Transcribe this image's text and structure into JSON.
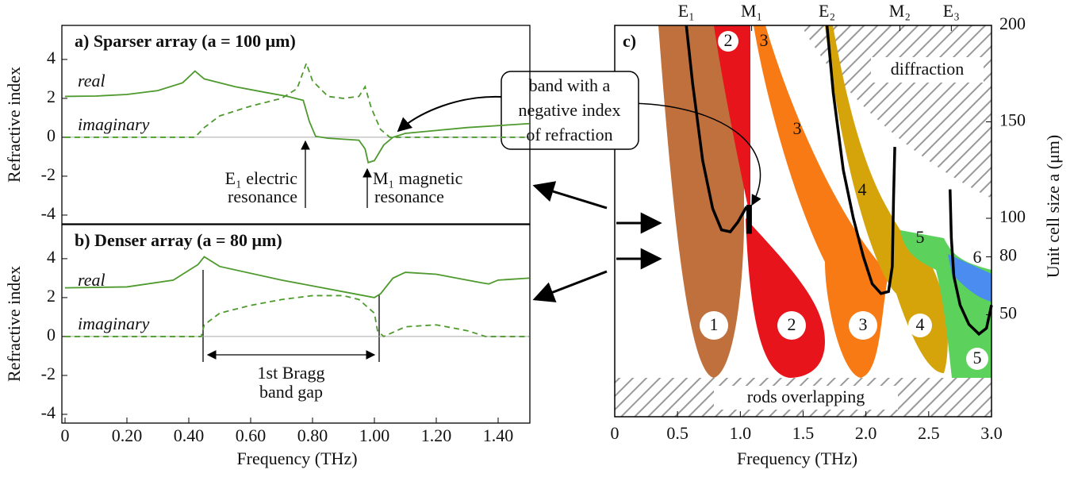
{
  "chart_data": [
    {
      "type": "line",
      "title": "a) Sparser array (a = 100 μm)",
      "ylabel": "Refractive index",
      "xlim": [
        0,
        1.5
      ],
      "ylim": [
        -4.45,
        5.75
      ],
      "yticks": [
        -4,
        -2,
        0,
        2,
        4
      ],
      "series": [
        {
          "name": "real",
          "color": "#4e9a2e",
          "line_style": "solid",
          "x": [
            0,
            0.1,
            0.2,
            0.3,
            0.38,
            0.42,
            0.45,
            0.55,
            0.65,
            0.72,
            0.77,
            0.79,
            0.81,
            0.85,
            0.9,
            0.95,
            0.97,
            0.98,
            1.0,
            1.03,
            1.06,
            1.1,
            1.2,
            1.3,
            1.4,
            1.5
          ],
          "values": [
            2.1,
            2.12,
            2.2,
            2.4,
            2.8,
            3.4,
            3.0,
            2.6,
            2.3,
            2.1,
            1.9,
            0.8,
            0.05,
            -0.05,
            -0.1,
            -0.15,
            -0.6,
            -1.3,
            -1.2,
            -0.4,
            0,
            0.2,
            0.35,
            0.5,
            0.6,
            0.7
          ]
        },
        {
          "name": "imaginary",
          "color": "#4e9a2e",
          "line_style": "dashed",
          "x": [
            0,
            0.42,
            0.45,
            0.5,
            0.6,
            0.7,
            0.75,
            0.78,
            0.8,
            0.85,
            0.9,
            0.95,
            0.97,
            0.99,
            1.02,
            1.05,
            1.5
          ],
          "values": [
            0,
            0,
            0.5,
            1.1,
            1.6,
            2.0,
            2.5,
            3.8,
            2.9,
            2.1,
            2.0,
            2.1,
            2.6,
            1.5,
            0.4,
            0,
            0
          ]
        }
      ],
      "annotations": [
        "E₁ electric",
        "resonance",
        "M₁ magnetic",
        "resonance"
      ]
    },
    {
      "type": "line",
      "title": "b) Denser array (a = 80 μm)",
      "ylabel": "Refractive index",
      "xlabel": "Frequency (THz)",
      "xlim": [
        0,
        1.5
      ],
      "ylim": [
        -4.45,
        5.75
      ],
      "yticks": [
        -4,
        -2,
        0,
        2,
        4
      ],
      "xticks": [
        0,
        {
          "value": 0.2,
          "label": "0.20"
        },
        {
          "value": 0.4,
          "label": "0.40"
        },
        {
          "value": 0.6,
          "label": "0.60"
        },
        {
          "value": 0.8,
          "label": "0.80"
        },
        {
          "value": 1,
          "label": "1.00"
        },
        {
          "value": 1.2,
          "label": "1.20"
        },
        {
          "value": 1.4,
          "label": "1.40"
        }
      ],
      "series": [
        {
          "name": "real",
          "color": "#4e9a2e",
          "line_style": "solid",
          "x": [
            0,
            0.2,
            0.35,
            0.43,
            0.45,
            0.5,
            0.7,
            0.9,
            1.0,
            1.02,
            1.06,
            1.1,
            1.2,
            1.3,
            1.35,
            1.37,
            1.4,
            1.5
          ],
          "values": [
            2.5,
            2.55,
            2.9,
            3.7,
            4.1,
            3.6,
            2.9,
            2.3,
            2.0,
            2.2,
            3.0,
            3.3,
            3.2,
            2.9,
            2.75,
            2.7,
            2.9,
            3.0
          ]
        },
        {
          "name": "imaginary",
          "color": "#4e9a2e",
          "line_style": "dashed",
          "x": [
            0,
            0.44,
            0.45,
            0.5,
            0.6,
            0.7,
            0.8,
            0.9,
            0.95,
            1.0,
            1.01,
            1.03,
            1.1,
            1.2,
            1.3,
            1.36,
            1.4,
            1.5
          ],
          "values": [
            0,
            0,
            0.6,
            1.2,
            1.6,
            1.9,
            2.1,
            2.1,
            1.9,
            1.2,
            0.3,
            0,
            0.5,
            0.6,
            0.3,
            0,
            0,
            0
          ]
        }
      ],
      "annotations": [
        "1st Bragg",
        "band gap"
      ]
    },
    {
      "type": "band_diagram",
      "title": "c)",
      "xlabel": "Frequency (THz)",
      "ylabel": "Unit cell size a  (μm)",
      "xlim": [
        0,
        3.0
      ],
      "ylim": [
        0,
        200
      ],
      "xticks": [
        0,
        0.5,
        {
          "value": 1,
          "label": "1.0"
        },
        1.5,
        {
          "value": 2,
          "label": "2.0"
        },
        2.5,
        {
          "value": 3,
          "label": "3.0"
        }
      ],
      "yticks": [
        50,
        80,
        100,
        150,
        200
      ],
      "x2ticks": [
        {
          "value": 0.57,
          "label": "E₁"
        },
        {
          "value": 1.09,
          "label": "M₁"
        },
        {
          "value": 1.69,
          "label": "E₂"
        },
        {
          "value": 2.27,
          "label": "M₂"
        },
        {
          "value": 2.68,
          "label": "E₃"
        }
      ],
      "series": [
        {
          "color": "#000000",
          "width": 3.5,
          "x": [
            0.57,
            0.62,
            0.7,
            0.78,
            0.85,
            0.92,
            0.98,
            1.05
          ],
          "values": [
            200,
            170,
            130,
            105,
            94,
            93,
            98,
            106
          ]
        },
        {
          "color": "#000000",
          "width": 7,
          "x": [
            1.07,
            1.07
          ],
          "values": [
            92,
            107
          ]
        },
        {
          "color": "#000000",
          "width": 3.5,
          "x": [
            1.69,
            1.74,
            1.82,
            1.9,
            1.98,
            2.05,
            2.12,
            2.18,
            2.21,
            2.22,
            2.23
          ],
          "values": [
            200,
            165,
            125,
            100,
            80,
            66,
            61,
            62,
            75,
            110,
            137
          ]
        },
        {
          "color": "#000000",
          "width": 3.5,
          "x": [
            2.67,
            2.68,
            2.7,
            2.75,
            2.82,
            2.9,
            2.96,
            3.0
          ],
          "values": [
            115,
            90,
            70,
            55,
            45,
            40,
            43,
            55
          ]
        }
      ],
      "band_labels": [
        "1",
        "2",
        "3",
        "4",
        "5",
        "2",
        "3",
        "3",
        "4",
        "5",
        "6"
      ],
      "region_labels": [
        "diffraction",
        "rods overlapping"
      ],
      "callout": [
        "band with a",
        "negative index",
        "of refraction"
      ]
    }
  ]
}
